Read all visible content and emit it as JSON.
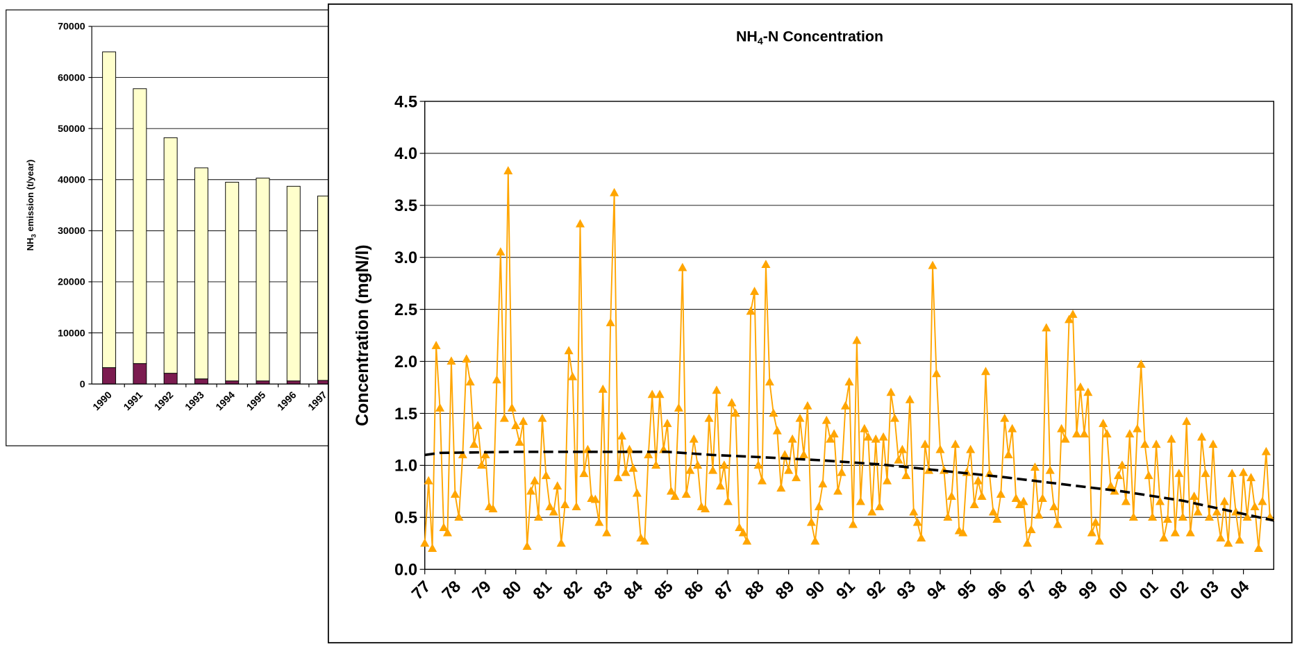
{
  "chart_data": [
    {
      "type": "bar",
      "stacked": true,
      "grid": true,
      "ylabel_parts": [
        "NH",
        "3",
        " emission (t/year)"
      ],
      "categories": [
        "1990",
        "1991",
        "1992",
        "1993",
        "1994",
        "1995",
        "1996",
        "1997"
      ],
      "series": [
        {
          "color": "#7b1c50",
          "values": [
            3200,
            4000,
            2100,
            1000,
            600,
            600,
            600,
            700
          ]
        },
        {
          "color": "#ffffcc",
          "values": [
            61800,
            53800,
            46100,
            41300,
            38900,
            39700,
            38100,
            36100
          ]
        }
      ],
      "ylim": [
        0,
        70000
      ],
      "yticks": [
        0,
        10000,
        20000,
        30000,
        40000,
        50000,
        60000,
        70000
      ]
    },
    {
      "type": "line",
      "grid": true,
      "title_parts": [
        "NH",
        "4",
        "-N Concentration"
      ],
      "ylabel": "Concentration (mgN/l)",
      "xlim": [
        1977,
        2005
      ],
      "xticks": [
        {
          "value": 1977,
          "label": "77"
        },
        {
          "value": 1978,
          "label": "78"
        },
        {
          "value": 1979,
          "label": "79"
        },
        {
          "value": 1980,
          "label": "80"
        },
        {
          "value": 1981,
          "label": "81"
        },
        {
          "value": 1982,
          "label": "82"
        },
        {
          "value": 1983,
          "label": "83"
        },
        {
          "value": 1984,
          "label": "84"
        },
        {
          "value": 1985,
          "label": "85"
        },
        {
          "value": 1986,
          "label": "86"
        },
        {
          "value": 1987,
          "label": "87"
        },
        {
          "value": 1988,
          "label": "88"
        },
        {
          "value": 1989,
          "label": "89"
        },
        {
          "value": 1990,
          "label": "90"
        },
        {
          "value": 1991,
          "label": "91"
        },
        {
          "value": 1992,
          "label": "92"
        },
        {
          "value": 1993,
          "label": "93"
        },
        {
          "value": 1994,
          "label": "94"
        },
        {
          "value": 1995,
          "label": "95"
        },
        {
          "value": 1996,
          "label": "96"
        },
        {
          "value": 1997,
          "label": "97"
        },
        {
          "value": 1998,
          "label": "98"
        },
        {
          "value": 1999,
          "label": "99"
        },
        {
          "value": 2000,
          "label": "00"
        },
        {
          "value": 2001,
          "label": "01"
        },
        {
          "value": 2002,
          "label": "02"
        },
        {
          "value": 2003,
          "label": "03"
        },
        {
          "value": 2004,
          "label": "04"
        }
      ],
      "ylim": [
        0,
        4.5
      ],
      "yticks": [
        {
          "value": 0,
          "label": "0.0"
        },
        0.5,
        {
          "value": 1,
          "label": "1.0"
        },
        1.5,
        {
          "value": 2,
          "label": "2.0"
        },
        2.5,
        {
          "value": 3,
          "label": "3.0"
        },
        3.5,
        {
          "value": 4,
          "label": "4.0"
        },
        4.5
      ],
      "series": [
        {
          "color": "#ffa500",
          "marker": "triangle",
          "x": [
            1977,
            1977.125,
            1977.25,
            1977.375,
            1977.5,
            1977.625,
            1977.75,
            1977.875,
            1978,
            1978.125,
            1978.25,
            1978.375,
            1978.5,
            1978.625,
            1978.75,
            1978.875,
            1979,
            1979.125,
            1979.25,
            1979.375,
            1979.5,
            1979.625,
            1979.75,
            1979.875,
            1980,
            1980.125,
            1980.25,
            1980.375,
            1980.5,
            1980.625,
            1980.75,
            1980.875,
            1981,
            1981.125,
            1981.25,
            1981.375,
            1981.5,
            1981.625,
            1981.75,
            1981.875,
            1982,
            1982.125,
            1982.25,
            1982.375,
            1982.5,
            1982.625,
            1982.75,
            1982.875,
            1983,
            1983.125,
            1983.25,
            1983.375,
            1983.5,
            1983.625,
            1983.75,
            1983.875,
            1984,
            1984.125,
            1984.25,
            1984.375,
            1984.5,
            1984.625,
            1984.75,
            1984.875,
            1985,
            1985.125,
            1985.25,
            1985.375,
            1985.5,
            1985.625,
            1985.75,
            1985.875,
            1986,
            1986.125,
            1986.25,
            1986.375,
            1986.5,
            1986.625,
            1986.75,
            1986.875,
            1987,
            1987.125,
            1987.25,
            1987.375,
            1987.5,
            1987.625,
            1987.75,
            1987.875,
            1988,
            1988.125,
            1988.25,
            1988.375,
            1988.5,
            1988.625,
            1988.75,
            1988.875,
            1989,
            1989.125,
            1989.25,
            1989.375,
            1989.5,
            1989.625,
            1989.75,
            1989.875,
            1990,
            1990.125,
            1990.25,
            1990.375,
            1990.5,
            1990.625,
            1990.75,
            1990.875,
            1991,
            1991.125,
            1991.25,
            1991.375,
            1991.5,
            1991.625,
            1991.75,
            1991.875,
            1992,
            1992.125,
            1992.25,
            1992.375,
            1992.5,
            1992.625,
            1992.75,
            1992.875,
            1993,
            1993.125,
            1993.25,
            1993.375,
            1993.5,
            1993.625,
            1993.75,
            1993.875,
            1994,
            1994.125,
            1994.25,
            1994.375,
            1994.5,
            1994.625,
            1994.75,
            1994.875,
            1995,
            1995.125,
            1995.25,
            1995.375,
            1995.5,
            1995.625,
            1995.75,
            1995.875,
            1996,
            1996.125,
            1996.25,
            1996.375,
            1996.5,
            1996.625,
            1996.75,
            1996.875,
            1997,
            1997.125,
            1997.25,
            1997.375,
            1997.5,
            1997.625,
            1997.75,
            1997.875,
            1998,
            1998.125,
            1998.25,
            1998.375,
            1998.5,
            1998.625,
            1998.75,
            1998.875,
            1999,
            1999.125,
            1999.25,
            1999.375,
            1999.5,
            1999.625,
            1999.75,
            1999.875,
            2000,
            2000.125,
            2000.25,
            2000.375,
            2000.5,
            2000.625,
            2000.75,
            2000.875,
            2001,
            2001.125,
            2001.25,
            2001.375,
            2001.5,
            2001.625,
            2001.75,
            2001.875,
            2002,
            2002.125,
            2002.25,
            2002.375,
            2002.5,
            2002.625,
            2002.75,
            2002.875,
            2003,
            2003.125,
            2003.25,
            2003.375,
            2003.5,
            2003.625,
            2003.75,
            2003.875,
            2004,
            2004.125,
            2004.25,
            2004.375,
            2004.5,
            2004.625,
            2004.75,
            2004.875
          ],
          "values": [
            0.25,
            0.85,
            0.2,
            2.15,
            1.55,
            0.4,
            0.35,
            2.0,
            0.72,
            0.5,
            1.1,
            2.02,
            1.8,
            1.2,
            1.38,
            1.0,
            1.1,
            0.6,
            0.58,
            1.82,
            3.05,
            1.45,
            3.83,
            1.55,
            1.38,
            1.22,
            1.42,
            0.22,
            0.75,
            0.85,
            0.5,
            1.45,
            0.9,
            0.6,
            0.55,
            0.8,
            0.25,
            0.62,
            2.1,
            1.85,
            0.6,
            3.32,
            0.92,
            1.15,
            0.68,
            0.67,
            0.45,
            1.73,
            0.35,
            2.37,
            3.62,
            0.88,
            1.28,
            0.93,
            1.15,
            0.97,
            0.73,
            0.3,
            0.27,
            1.1,
            1.68,
            1.0,
            1.68,
            1.15,
            1.4,
            0.75,
            0.7,
            1.55,
            2.9,
            0.72,
            0.95,
            1.25,
            1.0,
            0.6,
            0.58,
            1.45,
            0.95,
            1.72,
            0.8,
            1.0,
            0.65,
            1.6,
            1.5,
            0.4,
            0.35,
            0.27,
            2.48,
            2.67,
            1.0,
            0.85,
            2.93,
            1.8,
            1.5,
            1.33,
            0.78,
            1.1,
            0.95,
            1.25,
            0.88,
            1.45,
            1.1,
            1.57,
            0.45,
            0.27,
            0.6,
            0.82,
            1.43,
            1.25,
            1.3,
            0.75,
            0.93,
            1.57,
            1.8,
            0.43,
            2.2,
            0.65,
            1.35,
            1.27,
            0.55,
            1.25,
            0.6,
            1.27,
            0.85,
            1.7,
            1.45,
            1.05,
            1.15,
            0.9,
            1.63,
            0.55,
            0.45,
            0.3,
            1.2,
            0.95,
            2.92,
            1.88,
            1.15,
            0.95,
            0.5,
            0.7,
            1.2,
            0.37,
            0.35,
            0.93,
            1.15,
            0.62,
            0.85,
            0.7,
            1.9,
            0.92,
            0.55,
            0.48,
            0.72,
            1.45,
            1.1,
            1.35,
            0.68,
            0.62,
            0.65,
            0.25,
            0.38,
            0.98,
            0.52,
            0.68,
            2.32,
            0.95,
            0.6,
            0.43,
            1.35,
            1.25,
            2.4,
            2.45,
            1.3,
            1.75,
            1.3,
            1.7,
            0.35,
            0.45,
            0.27,
            1.4,
            1.3,
            0.8,
            0.75,
            0.9,
            1.0,
            0.65,
            1.3,
            0.5,
            1.35,
            1.97,
            1.2,
            0.9,
            0.5,
            1.2,
            0.65,
            0.3,
            0.48,
            1.25,
            0.35,
            0.92,
            0.5,
            1.42,
            0.35,
            0.7,
            0.55,
            1.27,
            0.92,
            0.5,
            1.2,
            0.55,
            0.3,
            0.65,
            0.25,
            0.92,
            0.55,
            0.28,
            0.93,
            0.5,
            0.88,
            0.6,
            0.2,
            0.65,
            1.13,
            0.5
          ]
        },
        {
          "color": "#000000",
          "dashed": true,
          "x": [
            1977,
            1977.5,
            1980,
            1985,
            1986.5,
            1988,
            1990,
            1992,
            1994,
            1996,
            1998,
            2000,
            2002,
            2005
          ],
          "values": [
            1.1,
            1.12,
            1.13,
            1.13,
            1.1,
            1.08,
            1.05,
            1.01,
            0.95,
            0.89,
            0.82,
            0.75,
            0.66,
            0.47
          ]
        }
      ]
    }
  ]
}
